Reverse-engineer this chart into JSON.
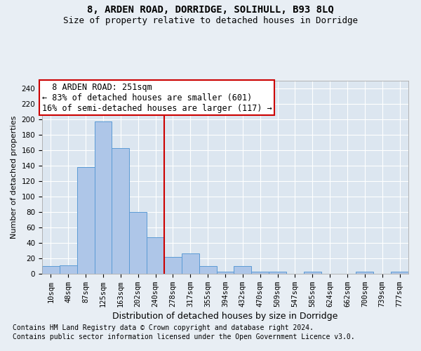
{
  "title1": "8, ARDEN ROAD, DORRIDGE, SOLIHULL, B93 8LQ",
  "title2": "Size of property relative to detached houses in Dorridge",
  "xlabel": "Distribution of detached houses by size in Dorridge",
  "ylabel": "Number of detached properties",
  "footnote1": "Contains HM Land Registry data © Crown copyright and database right 2024.",
  "footnote2": "Contains public sector information licensed under the Open Government Licence v3.0.",
  "bin_labels": [
    "10sqm",
    "48sqm",
    "87sqm",
    "125sqm",
    "163sqm",
    "202sqm",
    "240sqm",
    "278sqm",
    "317sqm",
    "355sqm",
    "394sqm",
    "432sqm",
    "470sqm",
    "509sqm",
    "547sqm",
    "585sqm",
    "624sqm",
    "662sqm",
    "700sqm",
    "739sqm",
    "777sqm"
  ],
  "bar_values": [
    10,
    11,
    138,
    197,
    163,
    80,
    47,
    22,
    26,
    10,
    3,
    10,
    3,
    3,
    0,
    3,
    0,
    0,
    3,
    0,
    3
  ],
  "bar_color": "#aec6e8",
  "bar_edge_color": "#5b9bd5",
  "background_color": "#dce6f0",
  "fig_background_color": "#e8eef4",
  "grid_color": "#ffffff",
  "annotation_line1": "  8 ARDEN ROAD: 251sqm  ",
  "annotation_line2": "← 83% of detached houses are smaller (601)",
  "annotation_line3": "16% of semi-detached houses are larger (117) →",
  "annotation_box_color": "#ffffff",
  "annotation_border_color": "#cc0000",
  "vline_color": "#cc0000",
  "vline_x": 6.5,
  "ylim": [
    0,
    250
  ],
  "yticks": [
    0,
    20,
    40,
    60,
    80,
    100,
    120,
    140,
    160,
    180,
    200,
    220,
    240
  ],
  "title1_fontsize": 10,
  "title2_fontsize": 9,
  "xlabel_fontsize": 9,
  "ylabel_fontsize": 8,
  "tick_fontsize": 7.5,
  "annotation_fontsize": 8.5,
  "footnote_fontsize": 7
}
